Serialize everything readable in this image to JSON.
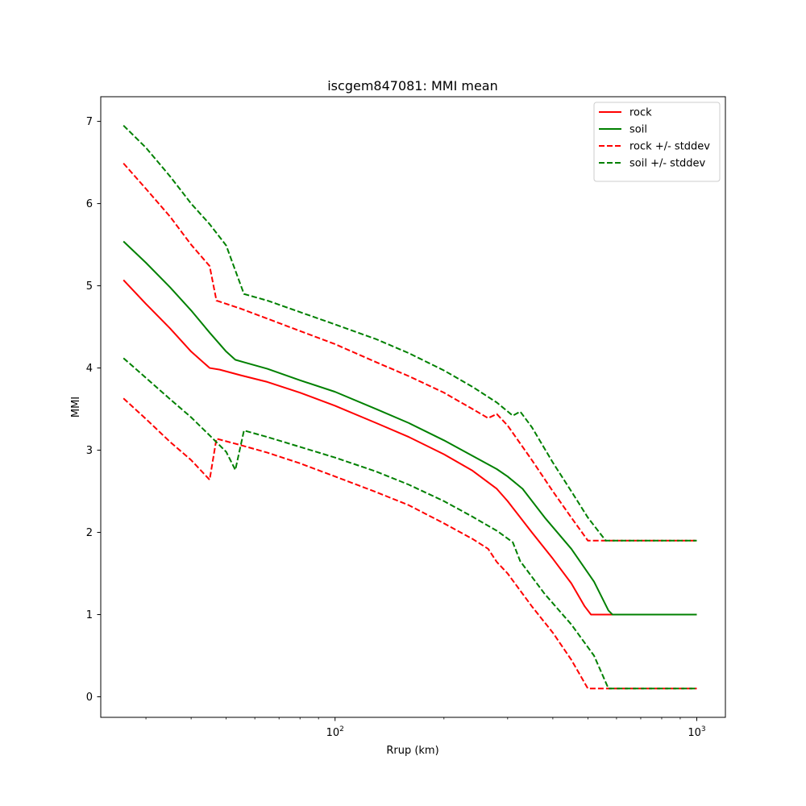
{
  "chart_data": {
    "type": "line",
    "title": "iscgem847081: MMI mean",
    "xlabel": "Rrup (km)",
    "ylabel": "MMI",
    "xscale": "log",
    "xlim": [
      22.5,
      1200
    ],
    "ylim": [
      -0.25,
      7.3
    ],
    "yticks": [
      0,
      1,
      2,
      3,
      4,
      5,
      6,
      7
    ],
    "xticks_major": [
      {
        "value": 100,
        "label_base": "10",
        "label_exp": "2"
      },
      {
        "value": 1000,
        "label_base": "10",
        "label_exp": "3"
      }
    ],
    "xticks_minor": [
      30,
      40,
      50,
      60,
      70,
      80,
      90,
      200,
      300,
      400,
      500,
      600,
      700,
      800,
      900
    ],
    "grid": false,
    "legend_position": "top-right",
    "series": [
      {
        "name": "rock",
        "color": "#ff0000",
        "dash": "solid",
        "points": [
          [
            26,
            5.07
          ],
          [
            30,
            4.78
          ],
          [
            35,
            4.48
          ],
          [
            40,
            4.2
          ],
          [
            45,
            4.0
          ],
          [
            48,
            3.98
          ],
          [
            55,
            3.91
          ],
          [
            65,
            3.83
          ],
          [
            80,
            3.7
          ],
          [
            100,
            3.54
          ],
          [
            130,
            3.33
          ],
          [
            160,
            3.16
          ],
          [
            200,
            2.95
          ],
          [
            240,
            2.75
          ],
          [
            280,
            2.53
          ],
          [
            300,
            2.38
          ],
          [
            350,
            2.0
          ],
          [
            400,
            1.68
          ],
          [
            450,
            1.38
          ],
          [
            490,
            1.1
          ],
          [
            510,
            1.0
          ],
          [
            600,
            1.0
          ],
          [
            800,
            1.0
          ],
          [
            1000,
            1.0
          ]
        ]
      },
      {
        "name": "soil",
        "color": "#008000",
        "dash": "solid",
        "points": [
          [
            26,
            5.54
          ],
          [
            30,
            5.28
          ],
          [
            35,
            4.98
          ],
          [
            40,
            4.7
          ],
          [
            45,
            4.43
          ],
          [
            50,
            4.2
          ],
          [
            53,
            4.1
          ],
          [
            56,
            4.07
          ],
          [
            65,
            3.99
          ],
          [
            80,
            3.85
          ],
          [
            100,
            3.71
          ],
          [
            130,
            3.5
          ],
          [
            160,
            3.33
          ],
          [
            200,
            3.12
          ],
          [
            240,
            2.93
          ],
          [
            280,
            2.77
          ],
          [
            300,
            2.68
          ],
          [
            330,
            2.53
          ],
          [
            380,
            2.18
          ],
          [
            450,
            1.8
          ],
          [
            520,
            1.4
          ],
          [
            570,
            1.05
          ],
          [
            585,
            1.0
          ],
          [
            700,
            1.0
          ],
          [
            1000,
            1.0
          ]
        ]
      },
      {
        "name": "rock +/- stddev",
        "color": "#ff0000",
        "dash": "dashed",
        "points": [
          [
            26,
            6.49
          ],
          [
            30,
            6.18
          ],
          [
            35,
            5.84
          ],
          [
            40,
            5.5
          ],
          [
            45,
            5.24
          ],
          [
            47,
            4.82
          ],
          [
            55,
            4.72
          ],
          [
            65,
            4.6
          ],
          [
            80,
            4.45
          ],
          [
            100,
            4.29
          ],
          [
            130,
            4.07
          ],
          [
            160,
            3.9
          ],
          [
            200,
            3.7
          ],
          [
            240,
            3.5
          ],
          [
            265,
            3.39
          ],
          [
            280,
            3.44
          ],
          [
            300,
            3.3
          ],
          [
            350,
            2.88
          ],
          [
            400,
            2.5
          ],
          [
            450,
            2.18
          ],
          [
            500,
            1.9
          ],
          [
            600,
            1.9
          ],
          [
            800,
            1.9
          ],
          [
            1000,
            1.9
          ]
        ]
      },
      {
        "name": "",
        "color": "#ff0000",
        "dash": "dashed",
        "points": [
          [
            26,
            3.63
          ],
          [
            30,
            3.38
          ],
          [
            35,
            3.1
          ],
          [
            40,
            2.88
          ],
          [
            45,
            2.64
          ],
          [
            47,
            3.14
          ],
          [
            55,
            3.06
          ],
          [
            65,
            2.97
          ],
          [
            80,
            2.84
          ],
          [
            100,
            2.68
          ],
          [
            130,
            2.49
          ],
          [
            160,
            2.33
          ],
          [
            200,
            2.11
          ],
          [
            240,
            1.92
          ],
          [
            265,
            1.8
          ],
          [
            280,
            1.64
          ],
          [
            300,
            1.5
          ],
          [
            350,
            1.1
          ],
          [
            400,
            0.78
          ],
          [
            450,
            0.45
          ],
          [
            500,
            0.1
          ],
          [
            600,
            0.1
          ],
          [
            800,
            0.1
          ],
          [
            1000,
            0.1
          ]
        ]
      },
      {
        "name": "soil +/- stddev",
        "color": "#008000",
        "dash": "dashed",
        "points": [
          [
            26,
            6.95
          ],
          [
            30,
            6.68
          ],
          [
            35,
            6.33
          ],
          [
            40,
            6.0
          ],
          [
            45,
            5.75
          ],
          [
            50,
            5.49
          ],
          [
            56,
            4.9
          ],
          [
            65,
            4.82
          ],
          [
            80,
            4.68
          ],
          [
            100,
            4.53
          ],
          [
            130,
            4.35
          ],
          [
            160,
            4.18
          ],
          [
            200,
            3.97
          ],
          [
            240,
            3.77
          ],
          [
            280,
            3.58
          ],
          [
            310,
            3.42
          ],
          [
            325,
            3.47
          ],
          [
            350,
            3.28
          ],
          [
            400,
            2.85
          ],
          [
            450,
            2.5
          ],
          [
            500,
            2.18
          ],
          [
            560,
            1.9
          ],
          [
            700,
            1.9
          ],
          [
            1000,
            1.9
          ]
        ]
      },
      {
        "name": "",
        "color": "#008000",
        "dash": "dashed",
        "points": [
          [
            26,
            4.12
          ],
          [
            30,
            3.88
          ],
          [
            35,
            3.62
          ],
          [
            40,
            3.4
          ],
          [
            45,
            3.18
          ],
          [
            50,
            2.98
          ],
          [
            53,
            2.76
          ],
          [
            56,
            3.24
          ],
          [
            65,
            3.16
          ],
          [
            80,
            3.04
          ],
          [
            100,
            2.91
          ],
          [
            130,
            2.74
          ],
          [
            160,
            2.58
          ],
          [
            200,
            2.38
          ],
          [
            240,
            2.19
          ],
          [
            280,
            2.02
          ],
          [
            310,
            1.88
          ],
          [
            325,
            1.65
          ],
          [
            380,
            1.25
          ],
          [
            450,
            0.88
          ],
          [
            520,
            0.5
          ],
          [
            570,
            0.1
          ],
          [
            700,
            0.1
          ],
          [
            1000,
            0.1
          ]
        ]
      }
    ]
  }
}
